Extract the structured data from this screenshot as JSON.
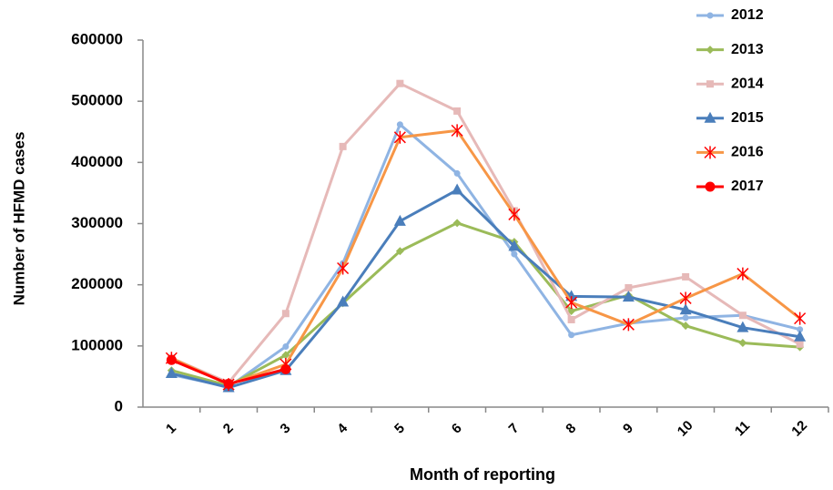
{
  "chart_data": {
    "type": "line",
    "x_label": "Month of reporting",
    "y_label": "Number of  HFMD cases",
    "categories": [
      "1",
      "2",
      "3",
      "4",
      "5",
      "6",
      "7",
      "8",
      "9",
      "10",
      "11",
      "12"
    ],
    "ylim": [
      0,
      600000
    ],
    "yticks": [
      0,
      100000,
      200000,
      300000,
      400000,
      500000,
      600000
    ],
    "grid": false,
    "legend": "top-right",
    "series": [
      {
        "name": "2012",
        "color": "#8fb4e3",
        "marker": "circle",
        "values": [
          53000,
          33000,
          99000,
          235000,
          462000,
          382000,
          250000,
          118000,
          137000,
          146000,
          150000,
          127000
        ]
      },
      {
        "name": "2013",
        "color": "#9bbb59",
        "marker": "diamond",
        "values": [
          60000,
          35000,
          85000,
          170000,
          255000,
          301000,
          270000,
          157000,
          183000,
          133000,
          105000,
          98000
        ]
      },
      {
        "name": "2014",
        "color": "#e6b9b8",
        "marker": "square",
        "values": [
          80000,
          40000,
          153000,
          426000,
          529000,
          484000,
          321000,
          143000,
          195000,
          213000,
          150000,
          103000
        ]
      },
      {
        "name": "2015",
        "color": "#4a7ebb",
        "marker": "triangle",
        "values": [
          55000,
          32000,
          60000,
          172000,
          304000,
          355000,
          263000,
          181000,
          180000,
          159000,
          130000,
          115000
        ]
      },
      {
        "name": "2016",
        "color": "#f79646",
        "marker": "star",
        "marker_color": "#ff0000",
        "values": [
          80000,
          37000,
          70000,
          227000,
          441000,
          452000,
          315000,
          171000,
          135000,
          178000,
          218000,
          145000
        ]
      },
      {
        "name": "2017",
        "color": "#ff0000",
        "marker": "big-circle",
        "values": [
          77000,
          38000,
          62000,
          null,
          null,
          null,
          null,
          null,
          null,
          null,
          null,
          null
        ]
      }
    ]
  }
}
